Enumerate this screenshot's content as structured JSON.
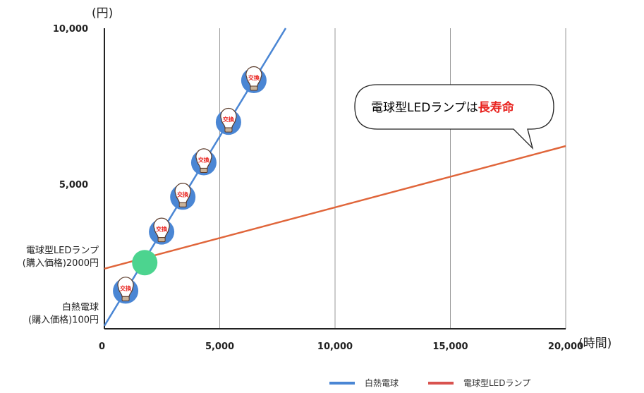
{
  "chart_data": {
    "type": "line",
    "y_unit_label": "(円)",
    "x_unit_label": "(時間)",
    "xlim": [
      0,
      20000
    ],
    "ylim": [
      0,
      10000
    ],
    "x_ticks": [
      "0",
      "5,000",
      "10,000",
      "15,000",
      "20,000"
    ],
    "x_tick_values": [
      0,
      5000,
      10000,
      15000,
      20000
    ],
    "y_ticks": [
      "5,000",
      "10,000"
    ],
    "y_tick_values": [
      5000,
      10000
    ],
    "grid": "vertical",
    "y_annotations": [
      {
        "line1": "電球型LEDランプ",
        "line2": "(購入価格)2000円",
        "value": 2000
      },
      {
        "line1": "白熱電球",
        "line2": "(購入価格)100円",
        "value": 100
      }
    ],
    "series": [
      {
        "name": "白熱電球",
        "color": "#4a86d4",
        "x": [
          0,
          7860
        ],
        "y": [
          100,
          10000
        ]
      },
      {
        "name": "電球型LEDランプ",
        "color": "#e0653a",
        "x": [
          0,
          20000
        ],
        "y": [
          2000,
          6080
        ]
      }
    ],
    "legend_colors": [
      "#4a86d4",
      "#d9534f"
    ],
    "legend_position": "bottom-right",
    "replacement_markers": {
      "label": "交換",
      "icon": "light-bulb-icon",
      "x": [
        920,
        2480,
        3400,
        4310,
        5380,
        6480
      ]
    },
    "crossover_marker": {
      "x": 1750,
      "y": 2200,
      "color": "#4cd48f"
    },
    "callout": {
      "text": "電球型LEDランプは",
      "emphasis": "長寿命",
      "emphasis_color": "#e8231f"
    }
  }
}
